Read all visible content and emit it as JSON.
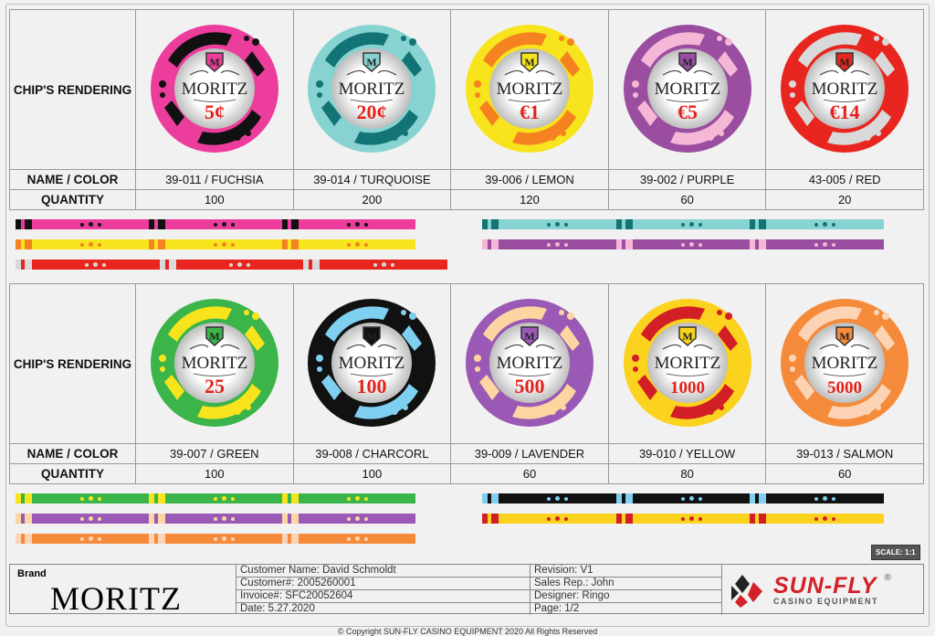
{
  "labels": {
    "rendering": "CHIP'S RENDERING",
    "name_color": "NAME / COLOR",
    "quantity": "QUANTITY"
  },
  "chips": [
    [
      {
        "name": "39-011 / FUCHSIA",
        "qty": "100",
        "value": "5¢",
        "base": "#ec3d9c",
        "accent": "#111111",
        "brand": "MORITZ"
      },
      {
        "name": "39-014 / TURQUOISE",
        "qty": "200",
        "value": "20¢",
        "base": "#86d3d1",
        "accent": "#127474",
        "brand": "MORITZ"
      },
      {
        "name": "39-006 / LEMON",
        "qty": "120",
        "value": "€1",
        "base": "#f7e41c",
        "accent": "#f58220",
        "brand": "MORITZ"
      },
      {
        "name": "39-002 / PURPLE",
        "qty": "60",
        "value": "€5",
        "base": "#9b4da0",
        "accent": "#f4b7d6",
        "brand": "MORITZ"
      },
      {
        "name": "43-005 / RED",
        "qty": "20",
        "value": "€14",
        "base": "#e8261f",
        "accent": "#d9d9d9",
        "brand": "MORITZ"
      }
    ],
    [
      {
        "name": "39-007 / GREEN",
        "qty": "100",
        "value": "25",
        "base": "#3bb44a",
        "accent": "#f7e41c",
        "brand": "MORITZ"
      },
      {
        "name": "39-008 / CHARCORL",
        "qty": "100",
        "value": "100",
        "base": "#111111",
        "accent": "#7ecff0",
        "brand": "MORITZ"
      },
      {
        "name": "39-009 / LAVENDER",
        "qty": "60",
        "value": "500",
        "base": "#9b59b6",
        "accent": "#fbd6a0",
        "brand": "MORITZ"
      },
      {
        "name": "39-010 / YELLOW",
        "qty": "80",
        "value": "1000",
        "base": "#fbd21d",
        "accent": "#d21f26",
        "brand": "MORITZ"
      },
      {
        "name": "39-013 / SALMON",
        "qty": "60",
        "value": "5000",
        "base": "#f58a3a",
        "accent": "#fdd3b5",
        "brand": "MORITZ"
      }
    ]
  ],
  "stripes": [
    [
      {
        "color": "#ec3d9c",
        "accent": "#111111",
        "w": 438
      },
      {
        "color": "#f7e41c",
        "accent": "#f58220",
        "w": 438
      },
      {
        "color": "#e8261f",
        "accent": "#d9d9d9",
        "w": 473
      },
      {
        "color": "#86d3d1",
        "accent": "#127474",
        "w": 440
      },
      {
        "color": "#9b4da0",
        "accent": "#f4b7d6",
        "w": 440
      }
    ],
    [
      {
        "color": "#3bb44a",
        "accent": "#f7e41c",
        "w": 438
      },
      {
        "color": "#9b59b6",
        "accent": "#fbd6a0",
        "w": 438
      },
      {
        "color": "#f58a3a",
        "accent": "#fdd3b5",
        "w": 438
      },
      {
        "color": "#111111",
        "accent": "#7ecff0",
        "w": 440
      },
      {
        "color": "#fbd21d",
        "accent": "#d21f26",
        "w": 440
      }
    ]
  ],
  "scale": "SCALE: 1:1",
  "footer": {
    "brand_label": "Brand",
    "brand_name": "MORITZ",
    "customer_name": "Customer Name: David Schmoldt",
    "revision": "Revision: V1",
    "customer_no": "Customer#: 2005260001",
    "sales_rep": "Sales Rep.: John",
    "invoice": "Invoice#: SFC20052604",
    "designer": "Designer: Ringo",
    "date": "Date: 5.27.2020",
    "page": "Page: 1/2",
    "logo_name": "SUN-FLY",
    "logo_sub": "CASINO EQUIPMENT",
    "logo_reg": "®"
  },
  "copyright": "© Copyright SUN-FLY CASINO EQUIPMENT 2020 All Rights Reserved"
}
